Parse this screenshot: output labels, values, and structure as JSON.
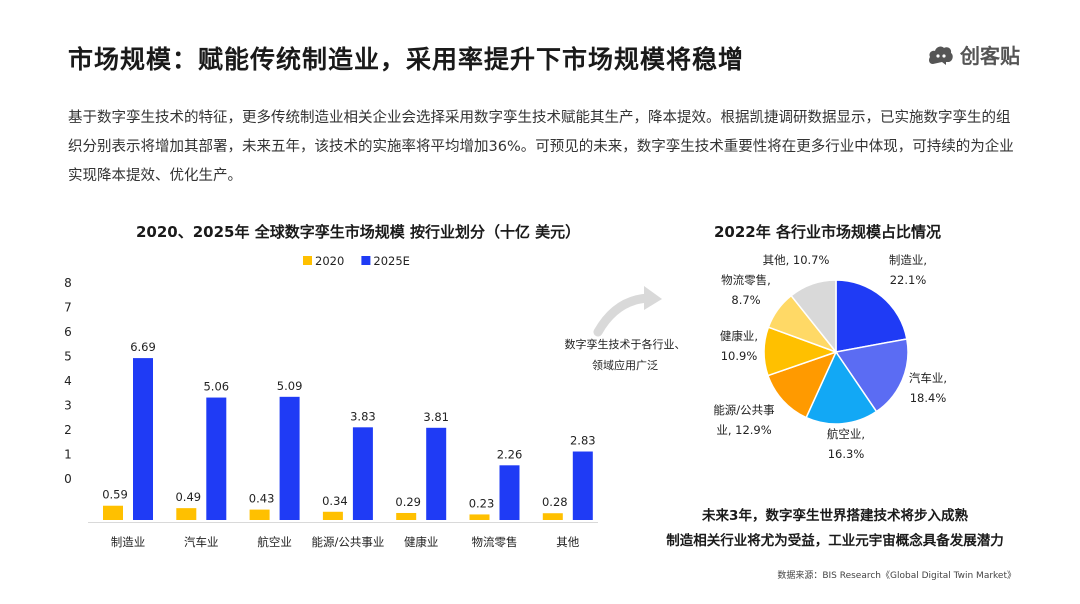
{
  "header": {
    "title": "市场规模：赋能传统制造业，采用率提升下市场规模将稳增",
    "logo_text": "创客贴",
    "logo_icon": "cloud-logo-icon"
  },
  "intro": "基于数字孪生技术的特征，更多传统制造业相关企业会选择采用数字孪生技术赋能其生产，降本提效。根据凯捷调研数据显示，已实施数字孪生的组织分别表示将增加其部署，未来五年，该技术的实施率将平均增加36%。可预见的未来，数字孪生技术重要性将在更多行业中体现，可持续的为企业实现降本提效、优化生产。",
  "chart_data": [
    {
      "type": "bar",
      "title": "2020、2025年 全球数字孪生市场规模 按行业划分（十亿 美元）",
      "categories": [
        "制造业",
        "汽车业",
        "航空业",
        "能源/公共事业",
        "健康业",
        "物流零售",
        "其他"
      ],
      "series": [
        {
          "name": "2020",
          "color": "#FFC000",
          "values": [
            0.59,
            0.49,
            0.43,
            0.34,
            0.29,
            0.23,
            0.28
          ],
          "labels": [
            "0.59",
            "0.49",
            "0.43",
            "0.34",
            "0.29",
            "0.23",
            "0.28"
          ]
        },
        {
          "name": "2025E",
          "color": "#1F3BF5",
          "values": [
            6.69,
            5.06,
            5.09,
            3.83,
            3.81,
            2.26,
            2.83
          ],
          "labels": [
            "6.69",
            "5.06",
            "5.09",
            "3.83",
            "3.81",
            "2.26",
            "2.83"
          ]
        }
      ],
      "yticks": [
        "0",
        "1",
        "2",
        "3",
        "4",
        "5",
        "6",
        "7",
        "8"
      ],
      "ylim": [
        0,
        8
      ],
      "legend": "top"
    },
    {
      "type": "pie",
      "title": "2022年 各行业市场规模占比情况",
      "slices": [
        {
          "name": "制造业",
          "value": 22.1,
          "label": "22.1%",
          "color": "#1F3BF5"
        },
        {
          "name": "汽车业",
          "value": 18.4,
          "label": "18.4%",
          "color": "#5B6CF3"
        },
        {
          "name": "航空业",
          "value": 16.3,
          "label": "16.3%",
          "color": "#12A8F5"
        },
        {
          "name": "能源/公共事业",
          "value": 12.9,
          "label": "12.9%",
          "color": "#FF9A00"
        },
        {
          "name": "健康业",
          "value": 10.9,
          "label": "10.9%",
          "color": "#FFC000"
        },
        {
          "name": "物流零售",
          "value": 8.7,
          "label": "8.7%",
          "color": "#FFD966"
        },
        {
          "name": "其他",
          "value": 10.7,
          "label": "10.7%",
          "color": "#D9D9D9"
        }
      ],
      "label_text": [
        [
          "制造业,",
          "22.1%"
        ],
        [
          "汽车业,",
          "18.4%"
        ],
        [
          "航空业,",
          "16.3%"
        ],
        [
          "能源/公共事",
          "业, 12.9%"
        ],
        [
          "健康业,",
          "10.9%"
        ],
        [
          "物流零售,",
          "8.7%"
        ],
        [
          "其他, 10.7%"
        ]
      ]
    }
  ],
  "annotation": {
    "arrow_line1": "数字孪生技术于各行业、",
    "arrow_line2": "领域应用广泛",
    "arrow_icon": "curved-arrow-icon"
  },
  "conclusion": {
    "line1": "未来3年，数字孪生世界搭建技术将步入成熟",
    "line2": "制造相关行业将尤为受益，工业元宇宙概念具备发展潜力"
  },
  "source": "数据来源：BIS Research《Global Digital Twin Market》"
}
